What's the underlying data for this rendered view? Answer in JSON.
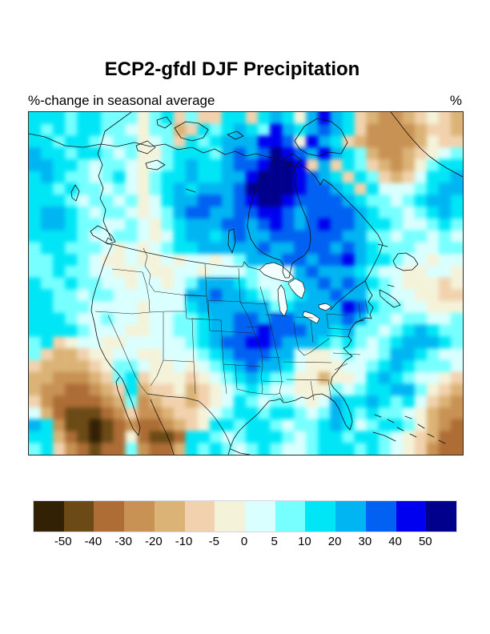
{
  "title": "ECP2-gfdl DJF Precipitation",
  "subtitle_left": "%-change in seasonal average",
  "unit_label": "%",
  "colorbar": {
    "labels": [
      "-50",
      "-40",
      "-30",
      "-20",
      "-10",
      "-5",
      "0",
      "5",
      "10",
      "20",
      "30",
      "40",
      "50"
    ],
    "colors": [
      "#332105",
      "#6b4a16",
      "#ad6d35",
      "#c89254",
      "#dbb377",
      "#f2d2ae",
      "#f4f3da",
      "#d9ffff",
      "#77ffff",
      "#00e6f6",
      "#00b5f2",
      "#0061f2",
      "#0000f0",
      "#00008c"
    ]
  },
  "chart_data": {
    "type": "heatmap",
    "title": "ECP2-gfdl DJF Precipitation",
    "subtitle": "%-change in seasonal average",
    "units": "%",
    "legend_position": "bottom",
    "levels": [
      -50,
      -40,
      -30,
      -20,
      -10,
      -5,
      0,
      5,
      10,
      20,
      30,
      40,
      50
    ],
    "palette_key": "a:<-50, b:-50..-40, c:-40..-30, d:-30..-20, e:-20..-10, f:-10..-5, g:-5..0, h:0..5, i:5..10, j:10..20, k:20..30, l:30..40, m:40..50, n:>50",
    "palette": {
      "a": "#332105",
      "b": "#6b4a16",
      "c": "#ad6d35",
      "d": "#c89254",
      "e": "#dbb377",
      "f": "#f2d2ae",
      "g": "#f4f3da",
      "h": "#d9ffff",
      "i": "#77ffff",
      "j": "#00e6f6",
      "k": "#00b5f2",
      "l": "#0061f2",
      "m": "#0000f0",
      "n": "#00008c"
    },
    "grid_cols": 36,
    "grid_rows_count": 29,
    "grid_rows": [
      "jjjijjiiigijfiffjjfjkjgkmkjfeddefgfe",
      "jijijjiihgiiefjijkjimkjklkjfddddeffe",
      "jjijjihiighifjijkkkmmlgmkjfeddddegff",
      "kjjijjihiggijjjiklklnmlkmkjieddefghi",
      "kkjjihiihghijkjjkllmnnmfkfjifedegijj",
      "jkjiihijhgijjkjjkkmnnnmlkjfjifefhjjk",
      "jjijiihihgijkjkkklnnnnmllkjfjhhhijkk",
      "jjjihiihighjkkllklmnnmllllkjiihijkkj",
      "jkkjihiihghikllkkllmmlkllllkjiihijkj",
      "jkkjiihhihgijkkkllklmlklmllkjjihhiji",
      "jjjjihhiihghjkkjklkkllllllkkiihiihih",
      "ijjiiihghghijjkkkkklkklllklkjiiihhii",
      "iijjihgghgghghhghikkkllkllmkjjihhghh",
      "iijiihhgghgghhghhhihihklkkkjihhgghhg",
      "jiijiihhghhghikkkjihhikklklkjihgggfg",
      "jjiihiihhhhhhkklkkjihijkklkkiihhggff",
      "jjiiihhhhghhhjkkkkkkijkkkkmljiihhggg",
      "jjjihhihhghhiijkkllkllkkkklkiihiihhi",
      "jjjjihhhgghhiijkkllmlllkkjkiihijkjii",
      "ijfghhgghhhhhijkllmmlkkkjijihijkkkji",
      "ifeefgghhgghhhijklllkkhgghihhikkjihh",
      "feeeefgiihgghghijklkkjhggghhijkjiiih",
      "eedddefijfgggfghijkjiiggegghjkjihhgf",
      "eddccdefjeffgefghijihhgggihijjkkigfe",
      "fdccccdeideffefghjihiihghkjjkjijhfed",
      "hecbbbcdfddeffghijjijjihikjijiihgedd",
      "kjdbbabcdccdefgjjijjihiijkjhijjigedc",
      "jjecbabcgcbbcjjihijjjihijjijjihgfecc",
      "ijfdcbccidccejijihijihhijjjijihgfdcc"
    ]
  }
}
